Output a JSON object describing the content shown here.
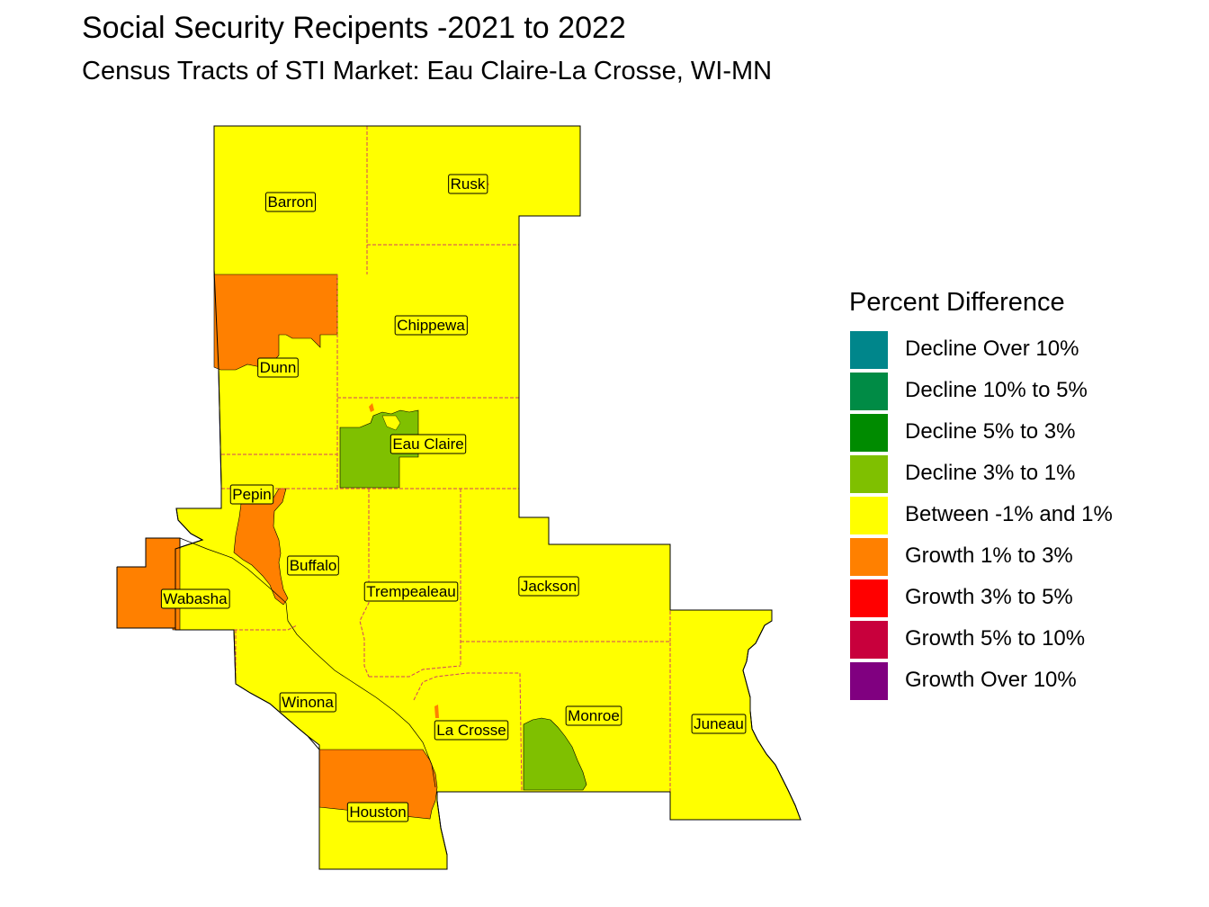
{
  "title": "Social Security Recipents -2021 to 2022",
  "subtitle": "Census Tracts of STI Market: Eau Claire-La Crosse, WI-MN",
  "legend": {
    "title": "Percent Difference",
    "items": [
      {
        "label": "Decline Over 10%",
        "color": "#00868b"
      },
      {
        "label": "Decline 10% to 5%",
        "color": "#008b45"
      },
      {
        "label": "Decline 5% to 3%",
        "color": "#008b00"
      },
      {
        "label": "Decline 3% to 1%",
        "color": "#7fc000"
      },
      {
        "label": "Between -1% and 1%",
        "color": "#ffff00"
      },
      {
        "label": "Growth 1% to 3%",
        "color": "#ff8000"
      },
      {
        "label": "Growth 3% to 5%",
        "color": "#ff0000"
      },
      {
        "label": "Growth 5% to 10%",
        "color": "#c8003c"
      },
      {
        "label": "Growth Over 10%",
        "color": "#800080"
      }
    ]
  },
  "counties": [
    {
      "name": "Barron",
      "category": "Between -1% and 1%"
    },
    {
      "name": "Rusk",
      "category": "Between -1% and 1%"
    },
    {
      "name": "Chippewa",
      "category": "Between -1% and 1%"
    },
    {
      "name": "Dunn",
      "category": "Between -1% and 1%"
    },
    {
      "name": "Eau Claire",
      "category": "Between -1% and 1%"
    },
    {
      "name": "Pepin",
      "category": "Between -1% and 1%"
    },
    {
      "name": "Buffalo",
      "category": "Between -1% and 1%"
    },
    {
      "name": "Wabasha",
      "category": "Between -1% and 1%"
    },
    {
      "name": "Trempealeau",
      "category": "Between -1% and 1%"
    },
    {
      "name": "Jackson",
      "category": "Between -1% and 1%"
    },
    {
      "name": "Juneau",
      "category": "Between -1% and 1%"
    },
    {
      "name": "Winona",
      "category": "Between -1% and 1%"
    },
    {
      "name": "La Crosse",
      "category": "Between -1% and 1%"
    },
    {
      "name": "Monroe",
      "category": "Between -1% and 1%"
    },
    {
      "name": "Houston",
      "category": "Between -1% and 1%"
    }
  ],
  "colors": {
    "base": "#ffff00",
    "growth": "#ff8000",
    "decline": "#7fc000",
    "county_border": "#d04060",
    "outline": "#000000"
  }
}
